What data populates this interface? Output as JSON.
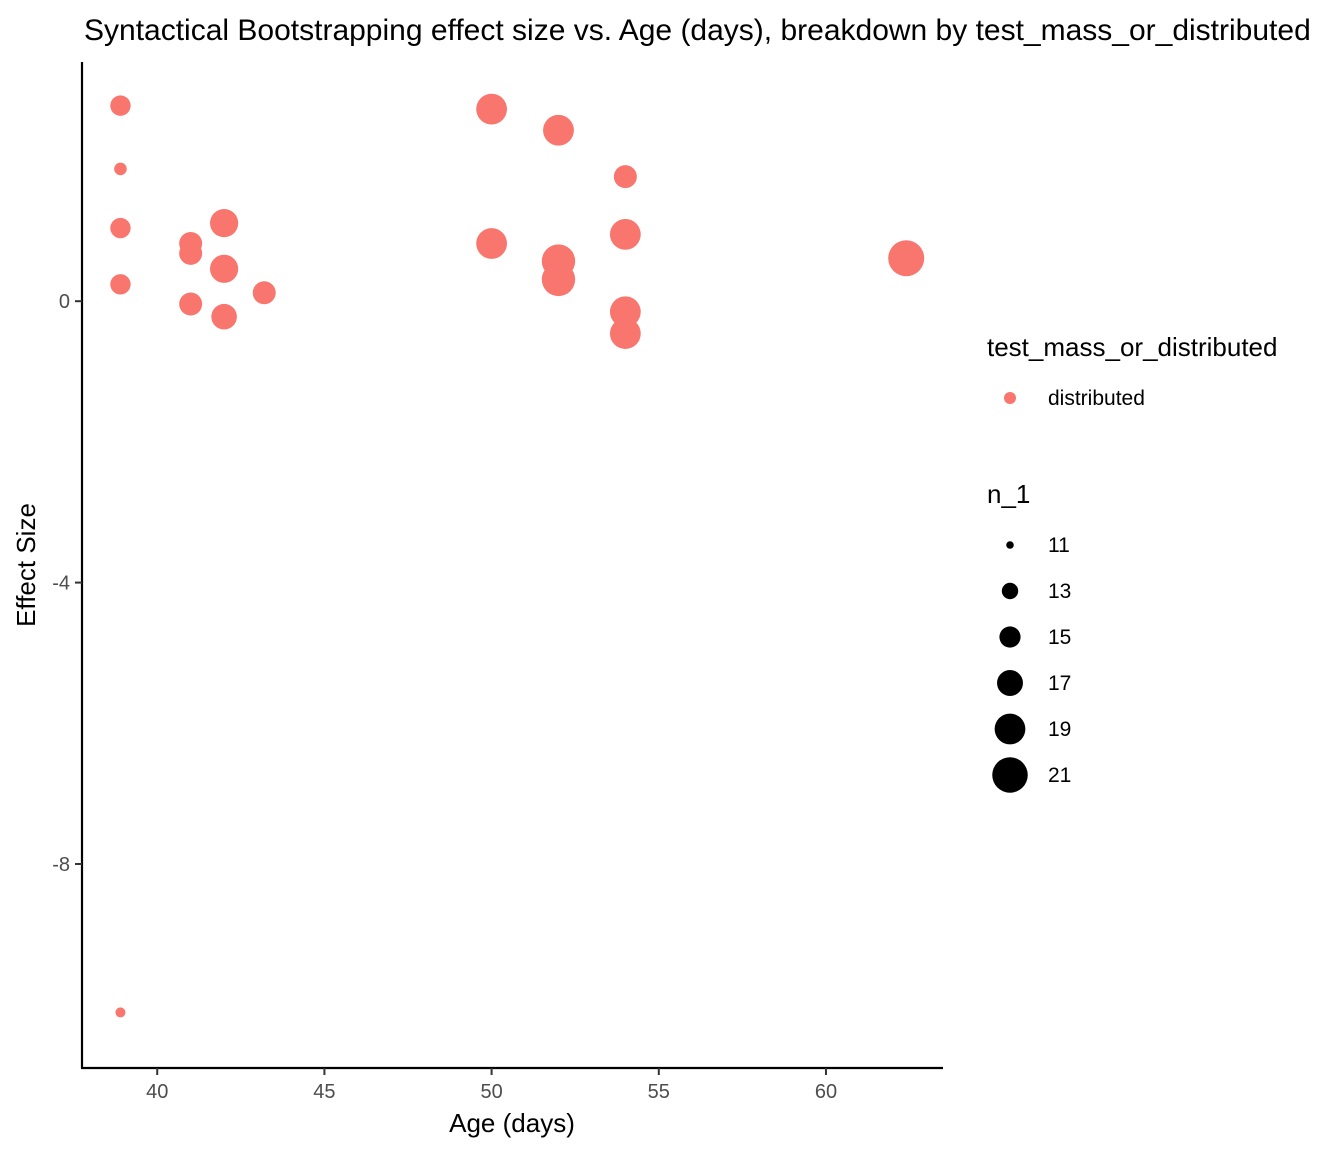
{
  "chart_data": {
    "type": "scatter",
    "title": "Syntactical Bootstrapping effect size vs. Age (days), breakdown by test_mass_or_distributed",
    "xlabel": "Age (days)",
    "ylabel": "Effect Size",
    "xlim": [
      37.75,
      63.5
    ],
    "ylim": [
      -10.9,
      3.4
    ],
    "x_ticks": [
      40,
      45,
      50,
      55,
      60
    ],
    "y_ticks": [
      0,
      -4,
      -8
    ],
    "x_tick_labels": [
      "40",
      "45",
      "50",
      "55",
      "60"
    ],
    "y_tick_labels": [
      "0",
      "-4",
      "-8"
    ],
    "grid": false,
    "series": [
      {
        "name": "distributed",
        "color": "#F8766D",
        "points": [
          {
            "x": 38.9,
            "y": 2.78,
            "n": 14
          },
          {
            "x": 38.9,
            "y": 1.88,
            "n": 11
          },
          {
            "x": 38.9,
            "y": 1.04,
            "n": 14
          },
          {
            "x": 38.9,
            "y": 0.24,
            "n": 14
          },
          {
            "x": 38.9,
            "y": -10.11,
            "n": 10
          },
          {
            "x": 41.0,
            "y": 0.82,
            "n": 15
          },
          {
            "x": 41.0,
            "y": 0.68,
            "n": 15
          },
          {
            "x": 41.0,
            "y": -0.04,
            "n": 15
          },
          {
            "x": 42.0,
            "y": 1.11,
            "n": 17
          },
          {
            "x": 42.0,
            "y": 0.46,
            "n": 17
          },
          {
            "x": 42.0,
            "y": -0.22,
            "n": 16
          },
          {
            "x": 43.2,
            "y": 0.12,
            "n": 15
          },
          {
            "x": 50.0,
            "y": 2.73,
            "n": 18
          },
          {
            "x": 50.0,
            "y": 0.82,
            "n": 18
          },
          {
            "x": 52.0,
            "y": 2.43,
            "n": 18
          },
          {
            "x": 52.0,
            "y": 0.57,
            "n": 19
          },
          {
            "x": 52.0,
            "y": 0.31,
            "n": 19
          },
          {
            "x": 54.0,
            "y": 1.77,
            "n": 15
          },
          {
            "x": 54.0,
            "y": 0.95,
            "n": 18
          },
          {
            "x": 54.0,
            "y": -0.15,
            "n": 18
          },
          {
            "x": 54.0,
            "y": -0.46,
            "n": 18
          },
          {
            "x": 62.4,
            "y": 0.61,
            "n": 20
          }
        ]
      }
    ],
    "legend": {
      "placement": "right",
      "color_title": "test_mass_or_distributed",
      "color_entries": [
        {
          "label": "distributed",
          "color": "#F8766D"
        }
      ],
      "size_title": "n_1",
      "size_entries": [
        {
          "label": "11",
          "n": 11
        },
        {
          "label": "13",
          "n": 13
        },
        {
          "label": "15",
          "n": 15
        },
        {
          "label": "17",
          "n": 17
        },
        {
          "label": "19",
          "n": 19
        },
        {
          "label": "21",
          "n": 21
        }
      ]
    }
  }
}
